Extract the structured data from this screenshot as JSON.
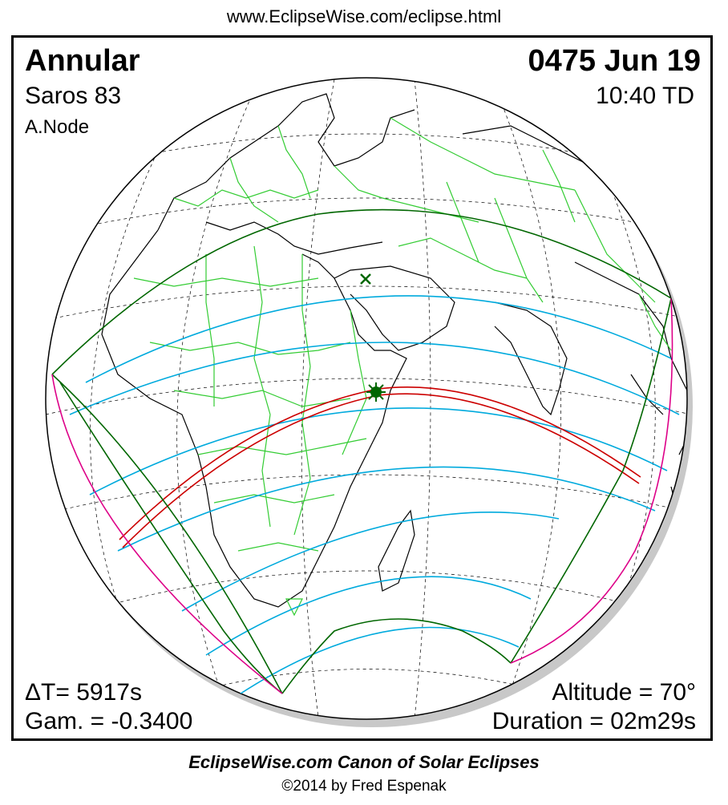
{
  "header": {
    "url": "www.EclipseWise.com/eclipse.html"
  },
  "eclipse": {
    "type": "Annular",
    "saros": "Saros  83",
    "node": "A.Node",
    "date": "0475 Jun 19",
    "time": "10:40 TD",
    "delta_t": "ΔT=   5917s",
    "gamma": "Gam. = -0.3400",
    "altitude": "Altitude = 70°",
    "duration": "Duration = 02m29s"
  },
  "footer": {
    "title": "EclipseWise.com Canon of Solar Eclipses",
    "copyright": "©2014 by Fred Espenak"
  },
  "colors": {
    "land_borders": "#33cc33",
    "coastline": "#000000",
    "penumbra_limits": "#00aadd",
    "central_path": "#cc0000",
    "outer_boundary": "#006600",
    "rise_set_curves": "#dd0088",
    "greatest_eclipse_marker": "#006600",
    "globe_shadow": "#c8c8c8"
  },
  "markers": [
    "greatest-eclipse-star",
    "subsolar-cross"
  ]
}
